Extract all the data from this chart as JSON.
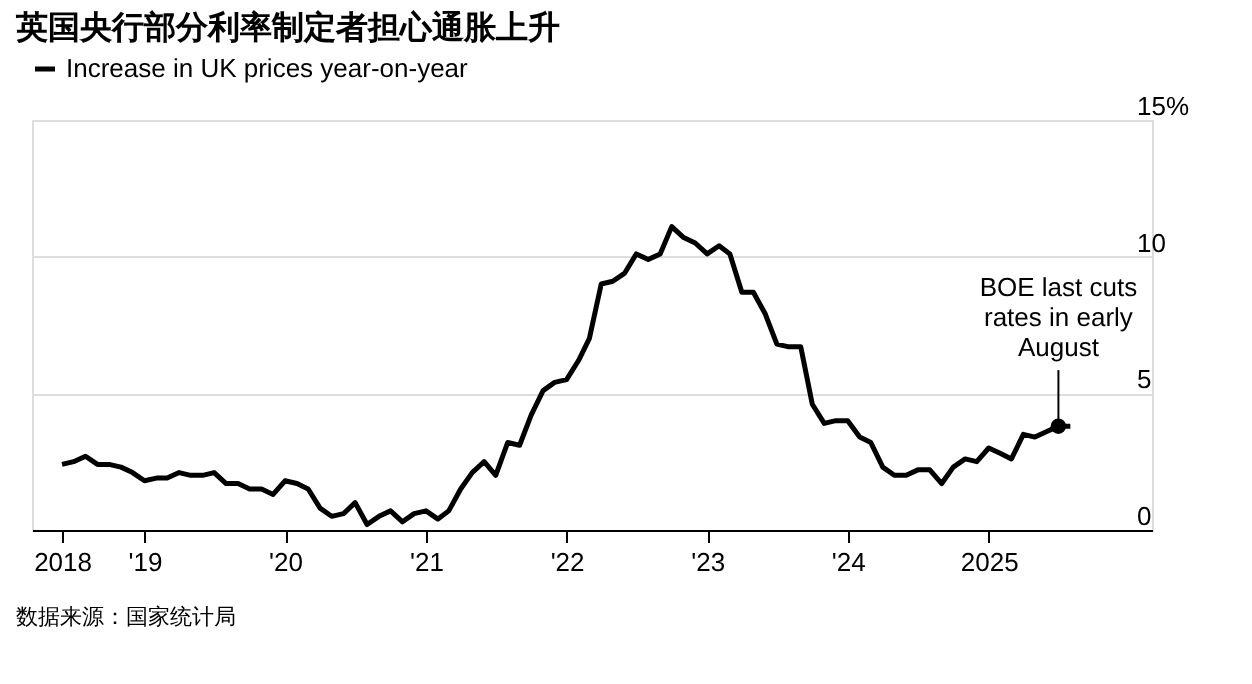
{
  "chart_data": {
    "type": "line",
    "title": "英国央行部分利率制定者担心通胀上升",
    "x": [
      "2018-06",
      "2018-07",
      "2018-08",
      "2018-09",
      "2018-10",
      "2018-11",
      "2018-12",
      "2019-01",
      "2019-02",
      "2019-03",
      "2019-04",
      "2019-05",
      "2019-06",
      "2019-07",
      "2019-08",
      "2019-09",
      "2019-10",
      "2019-11",
      "2019-12",
      "2020-01",
      "2020-02",
      "2020-03",
      "2020-04",
      "2020-05",
      "2020-06",
      "2020-07",
      "2020-08",
      "2020-09",
      "2020-10",
      "2020-11",
      "2020-12",
      "2021-01",
      "2021-02",
      "2021-03",
      "2021-04",
      "2021-05",
      "2021-06",
      "2021-07",
      "2021-08",
      "2021-09",
      "2021-10",
      "2021-11",
      "2021-12",
      "2022-01",
      "2022-02",
      "2022-03",
      "2022-04",
      "2022-05",
      "2022-06",
      "2022-07",
      "2022-08",
      "2022-09",
      "2022-10",
      "2022-11",
      "2022-12",
      "2023-01",
      "2023-02",
      "2023-03",
      "2023-04",
      "2023-05",
      "2023-06",
      "2023-07",
      "2023-08",
      "2023-09",
      "2023-10",
      "2023-11",
      "2023-12",
      "2024-01",
      "2024-02",
      "2024-03",
      "2024-04",
      "2024-05",
      "2024-06",
      "2024-07",
      "2024-08",
      "2024-09",
      "2024-10",
      "2024-11",
      "2024-12",
      "2025-01",
      "2025-02",
      "2025-03",
      "2025-04",
      "2025-05",
      "2025-06",
      "2025-07",
      "2025-08"
    ],
    "series": [
      {
        "name": "Increase in UK prices year-on-year",
        "color": "#000000",
        "values": [
          2.4,
          2.5,
          2.7,
          2.4,
          2.4,
          2.3,
          2.1,
          1.8,
          1.9,
          1.9,
          2.1,
          2.0,
          2.0,
          2.1,
          1.7,
          1.7,
          1.5,
          1.5,
          1.3,
          1.8,
          1.7,
          1.5,
          0.8,
          0.5,
          0.6,
          1.0,
          0.2,
          0.5,
          0.7,
          0.3,
          0.6,
          0.7,
          0.4,
          0.7,
          1.5,
          2.1,
          2.5,
          2.0,
          3.2,
          3.1,
          4.2,
          5.1,
          5.4,
          5.5,
          6.2,
          7.0,
          9.0,
          9.1,
          9.4,
          10.1,
          9.9,
          10.1,
          11.1,
          10.7,
          10.5,
          10.1,
          10.4,
          10.1,
          8.7,
          8.7,
          7.9,
          6.8,
          6.7,
          6.7,
          4.6,
          3.9,
          4.0,
          4.0,
          3.4,
          3.2,
          2.3,
          2.0,
          2.0,
          2.2,
          2.2,
          1.7,
          2.3,
          2.6,
          2.5,
          3.0,
          2.8,
          2.6,
          3.5,
          3.4,
          3.6,
          3.8,
          3.8
        ]
      }
    ],
    "xlim": [
      "2018-03-15",
      "2026-03-01"
    ],
    "xticks": [
      {
        "value": "2018-06",
        "label": "2018"
      },
      {
        "value": "2019-01",
        "label": "'19"
      },
      {
        "value": "2020-01",
        "label": "'20"
      },
      {
        "value": "2021-01",
        "label": "'21"
      },
      {
        "value": "2022-01",
        "label": "'22"
      },
      {
        "value": "2023-01",
        "label": "'23"
      },
      {
        "value": "2024-01",
        "label": "'24"
      },
      {
        "value": "2025-01",
        "label": "2025"
      }
    ],
    "ylim": [
      0,
      15
    ],
    "yticks": [
      0,
      5,
      10,
      {
        "value": 15,
        "label": "15%"
      }
    ],
    "grid": "y",
    "legend": "top left",
    "annotations": [
      {
        "text": "BOE last cuts rates in early August",
        "x": "2025-07",
        "y": 3.8
      },
      "数据来源：国家统计局"
    ]
  }
}
